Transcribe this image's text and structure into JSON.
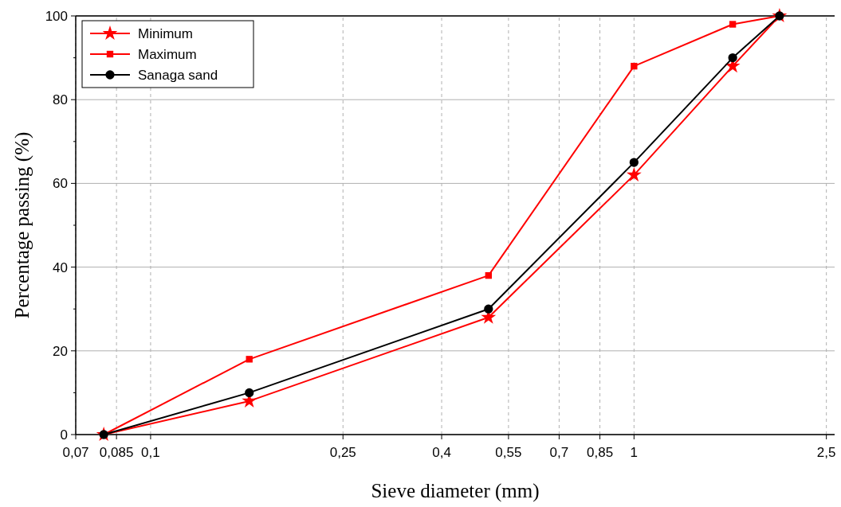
{
  "chart_data": {
    "type": "line",
    "xlabel": "Sieve diameter (mm)",
    "ylabel": "Percentage passing (%)",
    "log": "x",
    "x": [
      0.08,
      0.16,
      0.5,
      1,
      1.6,
      2
    ],
    "xlim": [
      0.07,
      2.6
    ],
    "xticks": [
      {
        "value": 0.07,
        "label": "0,07"
      },
      {
        "value": 0.085,
        "label": "0,085"
      },
      {
        "value": 0.1,
        "label": "0,1"
      },
      {
        "value": 0.25,
        "label": "0,25"
      },
      {
        "value": 0.4,
        "label": "0,4"
      },
      {
        "value": 0.55,
        "label": "0,55"
      },
      {
        "value": 0.7,
        "label": "0,7"
      },
      {
        "value": 0.85,
        "label": "0,85"
      },
      {
        "value": 1,
        "label": "1"
      },
      {
        "value": 2.5,
        "label": "2,5"
      }
    ],
    "ylim": [
      0,
      100
    ],
    "yticks": [
      0,
      20,
      40,
      60,
      80,
      100
    ],
    "grid": true,
    "legend": "top left",
    "series": [
      {
        "name": "Minimum",
        "color": "#ff0000",
        "marker": "star",
        "values": [
          0,
          8,
          28,
          62,
          88,
          100
        ]
      },
      {
        "name": "Maximum",
        "color": "#ff0000",
        "marker": "square",
        "values": [
          0,
          18,
          38,
          88,
          98,
          100
        ]
      },
      {
        "name": "Sanaga sand",
        "color": "#000000",
        "marker": "circle",
        "values": [
          0,
          10,
          30,
          65,
          90,
          100
        ]
      }
    ]
  }
}
